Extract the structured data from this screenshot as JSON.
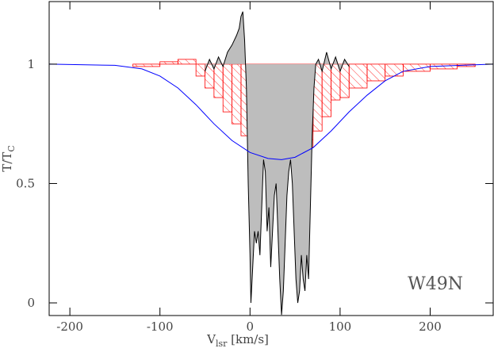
{
  "chart_data": {
    "type": "line",
    "xlabel": {
      "main": "V",
      "sub": "lsr",
      "rest": " [km/s]"
    },
    "ylabel": {
      "main": "T/T",
      "sub": "C"
    },
    "annotation": "W49N",
    "xlim": [
      -223,
      270
    ],
    "ylim": [
      -0.053,
      1.262
    ],
    "xticks": [
      -200,
      -100,
      0,
      100,
      200
    ],
    "yticks": [
      0,
      0.5,
      1
    ],
    "baseline": 1,
    "histogram": {
      "color": "#ff0000",
      "bins": [
        -130,
        -100,
        -80,
        -60,
        -50,
        -40,
        -30,
        -20,
        -10,
        0,
        10,
        20,
        30,
        40,
        50,
        60,
        70,
        80,
        90,
        100,
        110,
        130,
        150,
        170,
        200,
        230,
        250
      ],
      "values": [
        0.99,
        1.01,
        1.02,
        0.95,
        0.9,
        0.86,
        0.8,
        0.75,
        0.7,
        0.65,
        0.63,
        0.62,
        0.61,
        0.61,
        0.62,
        0.65,
        0.72,
        0.78,
        0.85,
        0.86,
        0.9,
        0.93,
        0.95,
        0.97,
        0.98,
        0.99
      ]
    },
    "spectrum": {
      "color": "#000000",
      "fill": "#bdbdbd",
      "x": [
        -50,
        -45,
        -40,
        -35,
        -30,
        -25,
        -20,
        -15,
        -12,
        -10,
        -8,
        -6,
        -4,
        -2,
        0,
        1,
        3,
        5,
        7,
        9,
        11,
        13,
        15,
        17,
        19,
        21,
        23,
        25,
        27,
        29,
        31,
        33,
        35,
        37,
        39,
        41,
        43,
        45,
        47,
        49,
        51,
        53,
        55,
        57,
        59,
        61,
        63,
        65,
        67,
        69,
        71,
        73,
        76,
        80,
        85,
        90,
        95,
        100,
        105,
        110
      ],
      "values": [
        0.97,
        1.02,
        0.98,
        1.03,
        0.99,
        1.05,
        1.08,
        1.12,
        1.15,
        1.2,
        1.22,
        1.1,
        0.9,
        0.5,
        0.2,
        0.0,
        0.15,
        0.3,
        0.25,
        0.3,
        0.2,
        0.4,
        0.6,
        0.55,
        0.3,
        0.4,
        0.15,
        0.3,
        0.45,
        0.5,
        0.3,
        0.1,
        -0.05,
        0.05,
        0.25,
        0.45,
        0.55,
        0.6,
        0.5,
        0.3,
        0.1,
        0.0,
        0.05,
        0.2,
        0.1,
        0.05,
        0.2,
        0.1,
        0.4,
        0.7,
        0.9,
        1.0,
        1.02,
        0.97,
        1.05,
        0.98,
        1.03,
        0.97,
        1.02,
        0.99
      ]
    },
    "model": {
      "color": "#0000ff",
      "x": [
        -223,
        -150,
        -120,
        -100,
        -80,
        -60,
        -40,
        -20,
        0,
        20,
        35,
        50,
        70,
        90,
        110,
        130,
        150,
        170,
        200,
        270
      ],
      "values": [
        1,
        0.995,
        0.98,
        0.95,
        0.9,
        0.83,
        0.75,
        0.68,
        0.63,
        0.605,
        0.6,
        0.61,
        0.65,
        0.72,
        0.8,
        0.87,
        0.93,
        0.97,
        0.99,
        1
      ]
    }
  }
}
